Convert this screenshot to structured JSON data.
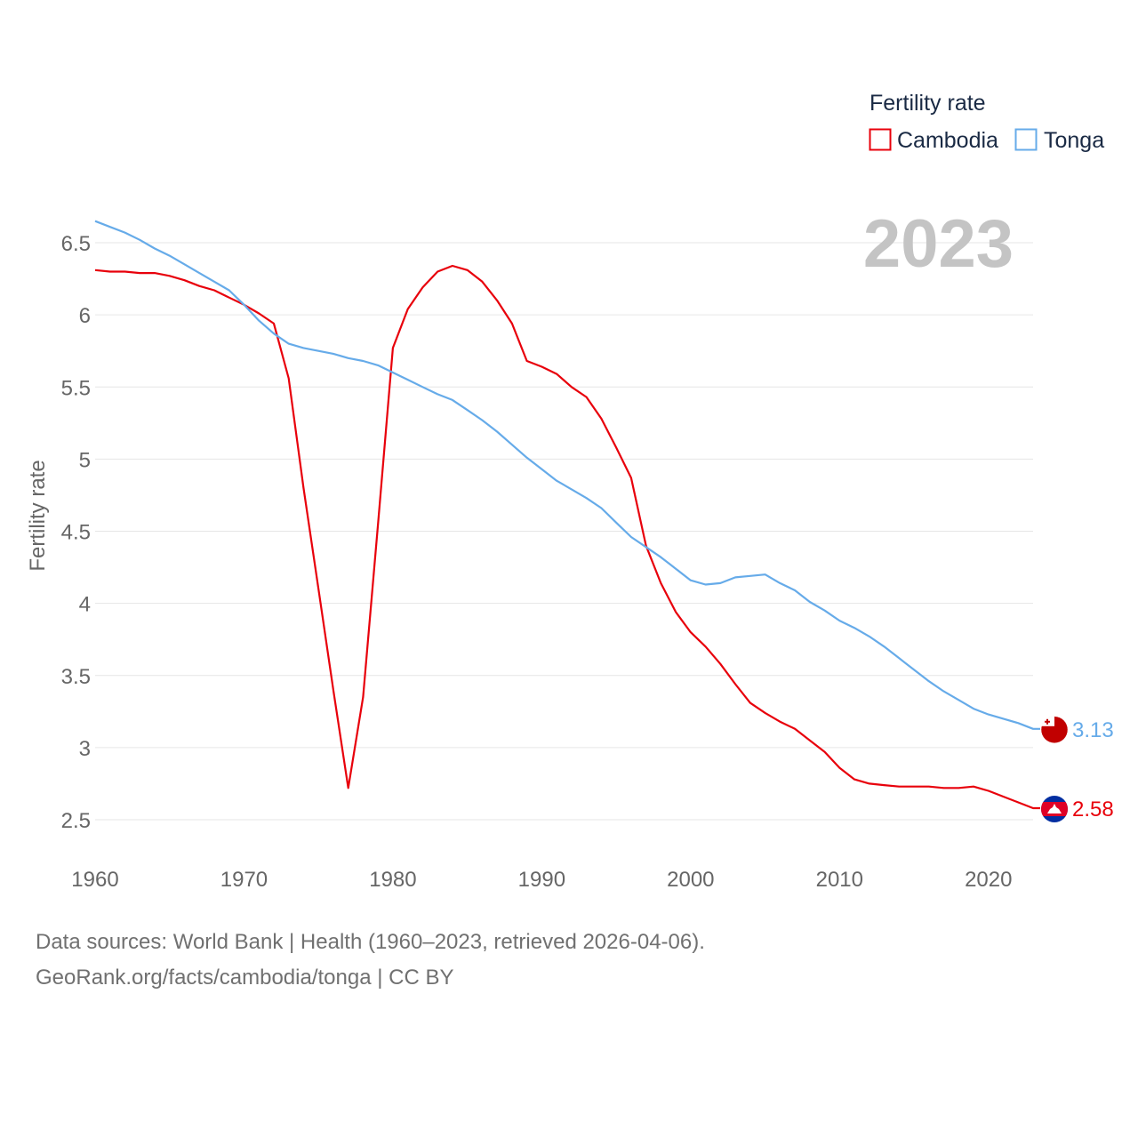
{
  "chart_data": {
    "type": "line",
    "title": "Fertility rate",
    "ylabel": "Fertility rate",
    "xlabel": "",
    "current_year": "2023",
    "xlim": [
      1960,
      2023
    ],
    "ylim": [
      2.3,
      6.7
    ],
    "xticks": [
      1960,
      1970,
      1980,
      1990,
      2000,
      2010,
      2020
    ],
    "yticks": [
      2.5,
      3,
      3.5,
      4,
      4.5,
      5,
      5.5,
      6,
      6.5
    ],
    "ytick_labels": [
      "2.5",
      "3",
      "3.5",
      "4",
      "4.5",
      "5",
      "5.5",
      "6",
      "6.5"
    ],
    "legend_title": "Fertility rate",
    "legend_position": "top-right",
    "series": [
      {
        "name": "Cambodia",
        "color": "#e8000b",
        "end_label": "2.58",
        "flag": "cambodia-flag-icon",
        "x": [
          1960,
          1961,
          1962,
          1963,
          1964,
          1965,
          1966,
          1967,
          1968,
          1969,
          1970,
          1971,
          1972,
          1973,
          1974,
          1975,
          1976,
          1977,
          1978,
          1979,
          1980,
          1981,
          1982,
          1983,
          1984,
          1985,
          1986,
          1987,
          1988,
          1989,
          1990,
          1991,
          1992,
          1993,
          1994,
          1995,
          1996,
          1997,
          1998,
          1999,
          2000,
          2001,
          2002,
          2003,
          2004,
          2005,
          2006,
          2007,
          2008,
          2009,
          2010,
          2011,
          2012,
          2013,
          2014,
          2015,
          2016,
          2017,
          2018,
          2019,
          2020,
          2021,
          2022,
          2023
        ],
        "values": [
          6.31,
          6.3,
          6.3,
          6.29,
          6.29,
          6.27,
          6.24,
          6.2,
          6.17,
          6.12,
          6.07,
          6.01,
          5.94,
          5.56,
          4.8,
          4.1,
          3.4,
          2.72,
          3.35,
          4.55,
          5.77,
          6.04,
          6.19,
          6.3,
          6.34,
          6.31,
          6.23,
          6.1,
          5.94,
          5.68,
          5.64,
          5.59,
          5.5,
          5.43,
          5.28,
          5.08,
          4.87,
          4.4,
          4.14,
          3.94,
          3.8,
          3.7,
          3.58,
          3.44,
          3.31,
          3.24,
          3.18,
          3.13,
          3.05,
          2.97,
          2.86,
          2.78,
          2.75,
          2.74,
          2.73,
          2.73,
          2.73,
          2.72,
          2.72,
          2.73,
          2.7,
          2.66,
          2.62,
          2.58
        ]
      },
      {
        "name": "Tonga",
        "color": "#66abe9",
        "end_label": "3.13",
        "flag": "tonga-flag-icon",
        "x": [
          1960,
          1961,
          1962,
          1963,
          1964,
          1965,
          1966,
          1967,
          1968,
          1969,
          1970,
          1971,
          1972,
          1973,
          1974,
          1975,
          1976,
          1977,
          1978,
          1979,
          1980,
          1981,
          1982,
          1983,
          1984,
          1985,
          1986,
          1987,
          1988,
          1989,
          1990,
          1991,
          1992,
          1993,
          1994,
          1995,
          1996,
          1997,
          1998,
          1999,
          2000,
          2001,
          2002,
          2003,
          2004,
          2005,
          2006,
          2007,
          2008,
          2009,
          2010,
          2011,
          2012,
          2013,
          2014,
          2015,
          2016,
          2017,
          2018,
          2019,
          2020,
          2021,
          2022,
          2023
        ],
        "values": [
          6.65,
          6.61,
          6.57,
          6.52,
          6.46,
          6.41,
          6.35,
          6.29,
          6.23,
          6.17,
          6.07,
          5.96,
          5.87,
          5.8,
          5.77,
          5.75,
          5.73,
          5.7,
          5.68,
          5.65,
          5.6,
          5.55,
          5.5,
          5.45,
          5.41,
          5.34,
          5.27,
          5.19,
          5.1,
          5.01,
          4.93,
          4.85,
          4.79,
          4.73,
          4.66,
          4.56,
          4.46,
          4.39,
          4.32,
          4.24,
          4.16,
          4.13,
          4.14,
          4.18,
          4.19,
          4.2,
          4.14,
          4.09,
          4.01,
          3.95,
          3.88,
          3.83,
          3.77,
          3.7,
          3.62,
          3.54,
          3.46,
          3.39,
          3.33,
          3.27,
          3.23,
          3.2,
          3.17,
          3.13
        ]
      }
    ]
  },
  "footer": {
    "line1": "Data sources: World Bank | Health (1960–2023, retrieved 2026-04-06).",
    "line2": "GeoRank.org/facts/cambodia/tonga | CC BY"
  }
}
